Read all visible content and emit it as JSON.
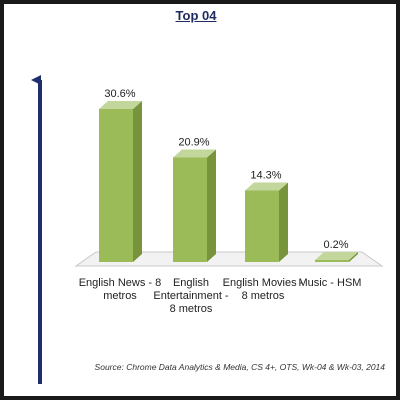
{
  "colors": {
    "bar_front": "#9bbb59",
    "bar_side": "#77933c",
    "bar_top": "#c3d69b",
    "arrow": "#1f2f6b",
    "title": "#1e2a5e"
  },
  "chart_data": {
    "type": "bar",
    "title": "Top 04",
    "categories": [
      "English News - 8 metros",
      "English Entertainment - 8 metros",
      "English Movies - 8 metros",
      "Music - HSM"
    ],
    "values": [
      30.6,
      20.9,
      14.3,
      0.2
    ],
    "data_labels": [
      "30.6%",
      "20.9%",
      "14.3%",
      "0.2%"
    ],
    "ylim": [
      0,
      35
    ],
    "grid": false,
    "legend": "none",
    "source": "Source: Chrome Data Analytics & Media, CS 4+, OTS, Wk-04 & Wk-03, 2014"
  }
}
